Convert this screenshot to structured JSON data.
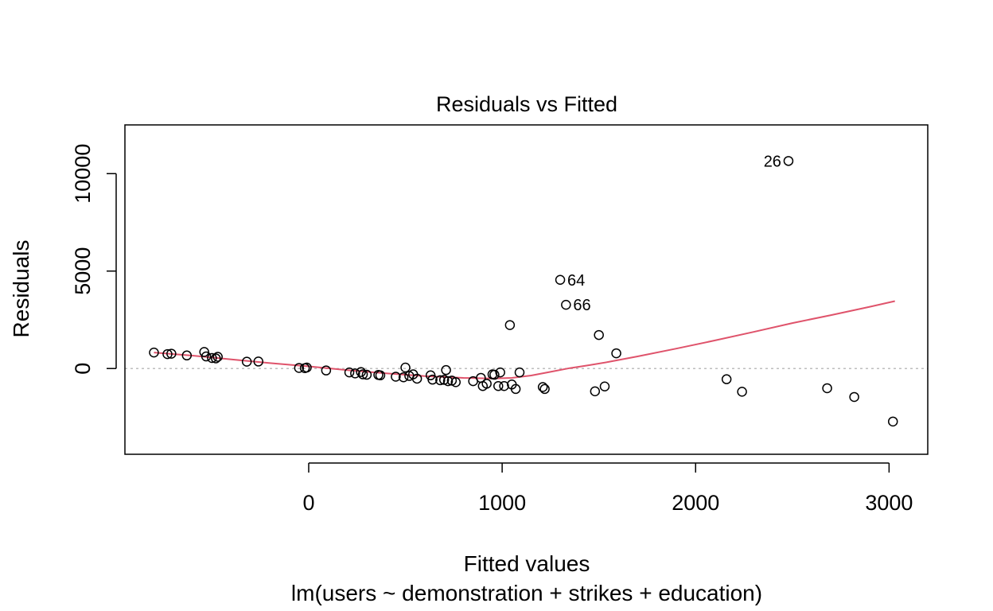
{
  "chart_data": {
    "type": "scatter",
    "title": "Residuals vs Fitted",
    "xlabel": "Fitted values",
    "subtitle": "lm(users ~ demonstration + strikes + education)",
    "ylabel": "Residuals",
    "xlim": [
      -950,
      3200
    ],
    "ylim": [
      -4400,
      12500
    ],
    "xticks": [
      0,
      1000,
      2000,
      3000
    ],
    "yticks": [
      0,
      5000,
      10000
    ],
    "xtick_labels": [
      "0",
      "1000",
      "2000",
      "3000"
    ],
    "ytick_labels": [
      "0",
      "5000",
      "10000"
    ],
    "zero_line": 0,
    "grid": false,
    "colors": {
      "points": "#000000",
      "smoother": "#df536b",
      "zero_line": "#bebebe"
    },
    "points": [
      {
        "x": -800,
        "y": 820
      },
      {
        "x": -730,
        "y": 740
      },
      {
        "x": -710,
        "y": 760
      },
      {
        "x": -630,
        "y": 670
      },
      {
        "x": -540,
        "y": 850
      },
      {
        "x": -530,
        "y": 620
      },
      {
        "x": -500,
        "y": 540
      },
      {
        "x": -480,
        "y": 520
      },
      {
        "x": -470,
        "y": 600
      },
      {
        "x": -320,
        "y": 350
      },
      {
        "x": -260,
        "y": 360
      },
      {
        "x": -50,
        "y": 30
      },
      {
        "x": -20,
        "y": 20
      },
      {
        "x": -10,
        "y": 50
      },
      {
        "x": 90,
        "y": -100
      },
      {
        "x": 210,
        "y": -200
      },
      {
        "x": 240,
        "y": -250
      },
      {
        "x": 270,
        "y": -180
      },
      {
        "x": 280,
        "y": -300
      },
      {
        "x": 300,
        "y": -320
      },
      {
        "x": 360,
        "y": -330
      },
      {
        "x": 370,
        "y": -350
      },
      {
        "x": 450,
        "y": -420
      },
      {
        "x": 490,
        "y": -450
      },
      {
        "x": 500,
        "y": 50
      },
      {
        "x": 520,
        "y": -380
      },
      {
        "x": 540,
        "y": -300
      },
      {
        "x": 560,
        "y": -520
      },
      {
        "x": 630,
        "y": -350
      },
      {
        "x": 640,
        "y": -570
      },
      {
        "x": 680,
        "y": -600
      },
      {
        "x": 700,
        "y": -580
      },
      {
        "x": 710,
        "y": -80
      },
      {
        "x": 720,
        "y": -650
      },
      {
        "x": 740,
        "y": -620
      },
      {
        "x": 760,
        "y": -700
      },
      {
        "x": 850,
        "y": -650
      },
      {
        "x": 890,
        "y": -480
      },
      {
        "x": 900,
        "y": -900
      },
      {
        "x": 920,
        "y": -780
      },
      {
        "x": 950,
        "y": -300
      },
      {
        "x": 960,
        "y": -320
      },
      {
        "x": 980,
        "y": -900
      },
      {
        "x": 990,
        "y": -200
      },
      {
        "x": 1010,
        "y": -900
      },
      {
        "x": 1040,
        "y": 2230
      },
      {
        "x": 1050,
        "y": -820
      },
      {
        "x": 1070,
        "y": -1050
      },
      {
        "x": 1090,
        "y": -200
      },
      {
        "x": 1210,
        "y": -950
      },
      {
        "x": 1220,
        "y": -1050
      },
      {
        "x": 1300,
        "y": 4550,
        "label": "64"
      },
      {
        "x": 1330,
        "y": 3270,
        "label": "66"
      },
      {
        "x": 1480,
        "y": -1170
      },
      {
        "x": 1500,
        "y": 1720
      },
      {
        "x": 1530,
        "y": -920
      },
      {
        "x": 1590,
        "y": 780
      },
      {
        "x": 2160,
        "y": -550
      },
      {
        "x": 2240,
        "y": -1190
      },
      {
        "x": 2480,
        "y": 10650,
        "label": "26"
      },
      {
        "x": 2680,
        "y": -1010
      },
      {
        "x": 2820,
        "y": -1460
      },
      {
        "x": 3020,
        "y": -2720
      }
    ],
    "smoother": [
      [
        -800,
        820
      ],
      [
        -600,
        660
      ],
      [
        -400,
        470
      ],
      [
        -200,
        280
      ],
      [
        0,
        110
      ],
      [
        200,
        -80
      ],
      [
        400,
        -250
      ],
      [
        600,
        -390
      ],
      [
        800,
        -480
      ],
      [
        950,
        -510
      ],
      [
        1050,
        -480
      ],
      [
        1150,
        -360
      ],
      [
        1250,
        -170
      ],
      [
        1350,
        20
      ],
      [
        1450,
        170
      ],
      [
        1550,
        340
      ],
      [
        1700,
        620
      ],
      [
        1900,
        1020
      ],
      [
        2100,
        1440
      ],
      [
        2300,
        1880
      ],
      [
        2500,
        2330
      ],
      [
        2700,
        2740
      ],
      [
        2900,
        3170
      ],
      [
        3030,
        3460
      ]
    ]
  }
}
